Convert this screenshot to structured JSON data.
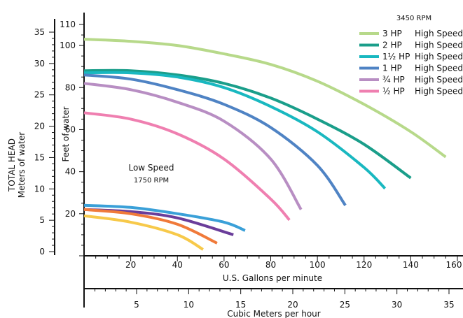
{
  "chart_data": {
    "type": "line",
    "rpm_label": "3450 RPM",
    "low_speed_label": "Low Speed",
    "low_speed_rpm": "1750 RPM",
    "x_axis_gpm": {
      "label": "U.S. Gallons per minute",
      "range": [
        0,
        160
      ],
      "ticks": [
        "20",
        "40",
        "60",
        "80",
        "100",
        "120",
        "140",
        "160"
      ]
    },
    "x_axis_m3h": {
      "label": "Cubic Meters per hour",
      "ticks": [
        "5",
        "10",
        "15",
        "20",
        "25",
        "30",
        "35"
      ]
    },
    "y_axis_feet": {
      "label": "Feet of water",
      "range": [
        0,
        115
      ],
      "ticks": [
        "20",
        "40",
        "60",
        "80",
        "100",
        "110"
      ]
    },
    "y_axis_meters": {
      "label_line1": "TOTAL HEAD",
      "label_line2": "Meters of water",
      "range": [
        0,
        35
      ],
      "ticks": [
        "0",
        "5",
        "10",
        "15",
        "20",
        "25",
        "30",
        "35"
      ]
    },
    "series": [
      {
        "name_hp": "3 HP",
        "name_speed": "High Speed",
        "color": "#b7d98a",
        "x": [
          0,
          20,
          40,
          60,
          80,
          100,
          120,
          140,
          155
        ],
        "y": [
          103,
          102,
          100,
          96,
          91,
          83,
          72,
          59,
          47
        ]
      },
      {
        "name_hp": "2 HP",
        "name_speed": "High Speed",
        "color": "#1a9e8a",
        "x": [
          0,
          20,
          40,
          60,
          80,
          100,
          120,
          140
        ],
        "y": [
          88,
          88,
          86,
          82,
          75,
          65,
          53,
          37
        ]
      },
      {
        "name_hp": "1½ HP",
        "name_speed": "High Speed",
        "color": "#19b8c0",
        "x": [
          0,
          20,
          40,
          60,
          80,
          100,
          120,
          129
        ],
        "y": [
          87,
          87,
          85,
          80,
          71,
          59,
          42,
          32
        ]
      },
      {
        "name_hp": "1 HP",
        "name_speed": "High Speed",
        "color": "#4f83c4",
        "x": [
          0,
          20,
          40,
          60,
          80,
          100,
          112
        ],
        "y": [
          86,
          84,
          79,
          72,
          61,
          43,
          24
        ]
      },
      {
        "name_hp": "¾ HP",
        "name_speed": "High Speed",
        "color": "#b88ec3",
        "x": [
          0,
          20,
          40,
          60,
          80,
          93
        ],
        "y": [
          82,
          79,
          73,
          64,
          46,
          22
        ]
      },
      {
        "name_hp": "½ HP",
        "name_speed": "High Speed",
        "color": "#ef7fb0",
        "x": [
          0,
          20,
          40,
          60,
          80,
          88
        ],
        "y": [
          68,
          65,
          58,
          46,
          27,
          17
        ]
      },
      {
        "name_hp": "",
        "name_speed": "",
        "color": "#3aa0d8",
        "x": [
          0,
          20,
          40,
          60,
          69
        ],
        "y": [
          24,
          23,
          20,
          16,
          12
        ]
      },
      {
        "name_hp": "",
        "name_speed": "",
        "color": "#6a3d9a",
        "x": [
          0,
          20,
          40,
          64
        ],
        "y": [
          22,
          21,
          18,
          10
        ]
      },
      {
        "name_hp": "",
        "name_speed": "",
        "color": "#f07a3a",
        "x": [
          0,
          20,
          40,
          57
        ],
        "y": [
          22,
          20,
          15,
          6
        ]
      },
      {
        "name_hp": "",
        "name_speed": "",
        "color": "#f7c94a",
        "x": [
          0,
          20,
          40,
          51
        ],
        "y": [
          19,
          16,
          10,
          3
        ]
      }
    ]
  }
}
